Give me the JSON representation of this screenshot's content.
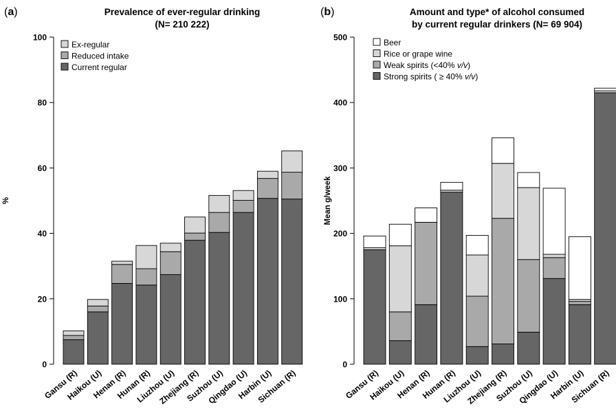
{
  "chart_data": [
    {
      "panel_label": "a",
      "type": "bar",
      "stacked": true,
      "title": "Prevalence of ever-regular drinking",
      "subtitle": "(N= 210 222)",
      "xlabel": "",
      "ylabel": "%",
      "ylim": [
        0,
        100
      ],
      "yticks": [
        0,
        20,
        40,
        60,
        80,
        100
      ],
      "grid": false,
      "legend_position": "top-left",
      "categories": [
        "Gansu (R)",
        "Haikou (U)",
        "Henan (R)",
        "Hunan (R)",
        "Liuzhou (U)",
        "Zhejiang (R)",
        "Suzhou (U)",
        "Qingdao (U)",
        "Harbin (U)",
        "Sichuan (R)"
      ],
      "series": [
        {
          "name": "Current regular",
          "color": "#666666",
          "values": [
            7.5,
            16,
            24.7,
            24.2,
            27.4,
            37.9,
            40.3,
            46.4,
            50.7,
            50.5
          ]
        },
        {
          "name": "Reduced intake",
          "color": "#a9a9a9",
          "values": [
            1.3,
            1.8,
            5.8,
            5,
            7,
            2.2,
            6.1,
            3.7,
            6.1,
            8.2
          ]
        },
        {
          "name": "Ex-regular",
          "color": "#d7d7d7",
          "values": [
            1.4,
            2,
            1,
            7.1,
            2.6,
            4.9,
            5.2,
            3,
            2.2,
            6.5
          ]
        }
      ],
      "legend_order": [
        "Ex-regular",
        "Reduced intake",
        "Current regular"
      ]
    },
    {
      "panel_label": "b",
      "type": "bar",
      "stacked": true,
      "title": "Amount and type* of alcohol consumed",
      "subtitle": "by current regular drinkers (N= 69 904)",
      "xlabel": "",
      "ylabel": "Mean g/week",
      "ylim": [
        0,
        500
      ],
      "yticks": [
        0,
        100,
        200,
        300,
        400,
        500
      ],
      "grid": false,
      "legend_position": "top-left",
      "categories": [
        "Gansu (R)",
        "Haikou (U)",
        "Henan (R)",
        "Hunan (R)",
        "Liuzhou (U)",
        "Zhejiang (R)",
        "Suzhou (U)",
        "Qingdao (U)",
        "Harbin (U)",
        "Sichuan (R)"
      ],
      "series": [
        {
          "name": "Strong spirits ( ≥ 40% v/v)",
          "color": "#666666",
          "values": [
            175,
            36,
            91,
            263,
            27,
            31,
            49,
            131,
            91,
            415
          ]
        },
        {
          "name": "Weak spirits (<40% v/v)",
          "color": "#a9a9a9",
          "values": [
            0,
            44,
            126,
            0,
            77,
            192,
            111,
            32,
            5,
            0
          ]
        },
        {
          "name": "Rice or grape wine",
          "color": "#d7d7d7",
          "values": [
            3,
            101,
            0,
            3,
            63,
            84,
            110,
            5,
            3,
            3
          ]
        },
        {
          "name": "Beer",
          "color": "#ffffff",
          "values": [
            18,
            33,
            22,
            12,
            30,
            39,
            23,
            101,
            96,
            4
          ]
        }
      ],
      "legend_order": [
        "Beer",
        "Rice or grape wine",
        "Weak spirits (<40% v/v)",
        "Strong spirits ( ≥ 40% v/v)"
      ]
    }
  ]
}
